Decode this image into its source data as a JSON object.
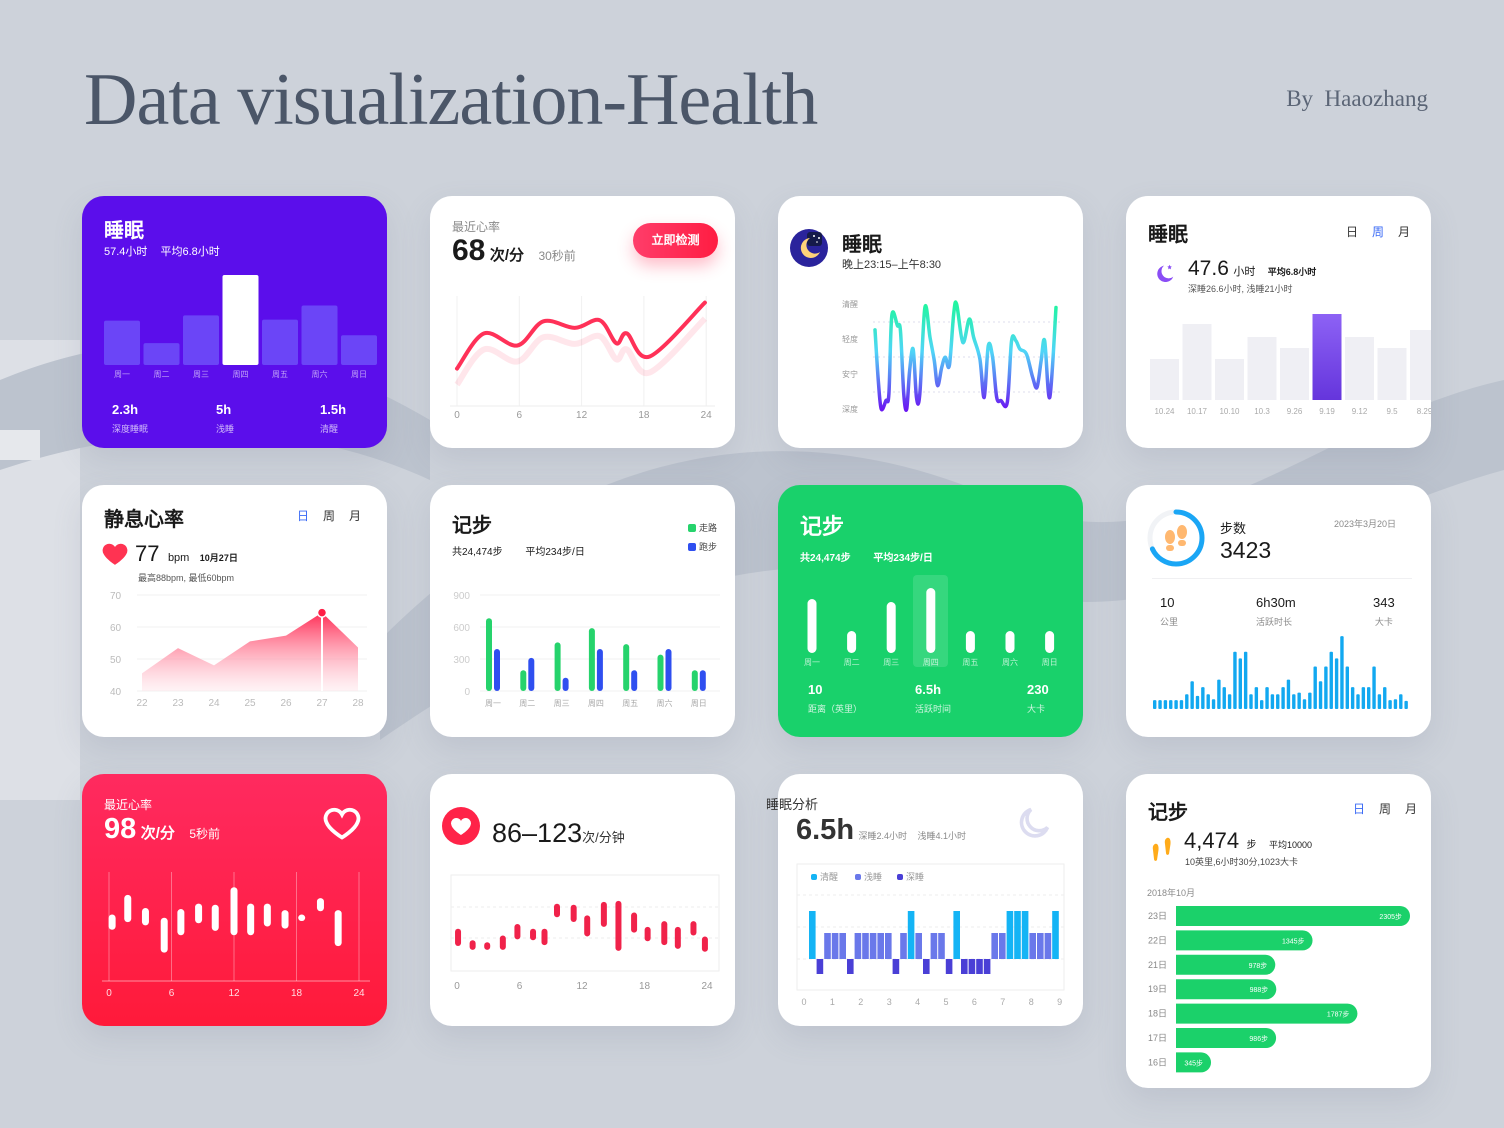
{
  "page": {
    "title": "Data visualization-Health",
    "author": "By  Haaozhang"
  },
  "colors": {
    "purple": "#5b0eeb",
    "red": "#ff2348",
    "green": "#19d16b",
    "blue": "#12a8f0",
    "tab_active": "#3a6af5",
    "walk": "#26d36c",
    "run": "#2f4ff0",
    "awake": "#14b4f5",
    "light": "#6a78ea",
    "deep": "#4a3fd6"
  },
  "cards": {
    "sleep_week": {
      "title": "睡眠",
      "total": "57.4小时",
      "average": "平均6.8小时",
      "stats": [
        {
          "value": "2.3h",
          "label": "深度睡眠"
        },
        {
          "value": "5h",
          "label": "浅睡"
        },
        {
          "value": "1.5h",
          "label": "清醒"
        }
      ]
    },
    "heart_rate_line": {
      "label": "最近心率",
      "value": "68",
      "unit": "次/分",
      "time": "30秒前",
      "button": "立即检测"
    },
    "sleep_stages": {
      "title": "睡眠",
      "time_range": "晚上23:15–上午8:30",
      "icon": "moon-night-icon"
    },
    "sleep_history": {
      "title": "睡眠",
      "tabs": [
        "日",
        "周",
        "月"
      ],
      "active_tab": 1,
      "total": "47.6",
      "unit": "小时",
      "average": "平均6.8小时",
      "detail": "深睡26.6小时, 浅睡21小时"
    },
    "resting_hr": {
      "title": "静息心率",
      "tabs": [
        "日",
        "周",
        "月"
      ],
      "active_tab": 0,
      "value": "77",
      "unit": "bpm",
      "date": "10月27日",
      "detail": "最高88bpm, 最低60bpm"
    },
    "steps_grouped": {
      "title": "记步",
      "total": "共24,474步",
      "average": "平均234步/日",
      "legend": [
        "走路",
        "跑步"
      ]
    },
    "steps_green": {
      "title": "记步",
      "total": "共24,474步",
      "average": "平均234步/日",
      "stats": [
        {
          "value": "10",
          "label": "距离（英里）"
        },
        {
          "value": "6.5h",
          "label": "活跃时间"
        },
        {
          "value": "230",
          "label": "大卡"
        }
      ]
    },
    "step_count": {
      "label": "步数",
      "value": "3423",
      "date": "2023年3月20日",
      "progress": 0.68,
      "stats": [
        {
          "value": "10",
          "label": "公里"
        },
        {
          "value": "6h30m",
          "label": "活跃时长"
        },
        {
          "value": "343",
          "label": "大卡"
        }
      ]
    },
    "recent_hr": {
      "label": "最近心率",
      "value": "98",
      "unit": "次/分",
      "time": "5秒前"
    },
    "hr_range": {
      "value": "86–123",
      "unit": "次/分钟"
    },
    "sleep_analysis": {
      "title": "睡眠分析",
      "value": "6.5h",
      "deep": "深睡2.4小时",
      "light": "浅睡4.1小时",
      "legend": [
        "清醒",
        "浅睡",
        "深睡"
      ]
    },
    "steps_daily": {
      "title": "记步",
      "tabs": [
        "日",
        "周",
        "月"
      ],
      "active_tab": 0,
      "value": "4,474",
      "unit": "步",
      "average": "平均10000",
      "detail": "10英里,6小时30分,1023大卡",
      "month": "2018年10月"
    }
  },
  "chart_data": [
    {
      "id": "sleep_week",
      "type": "bar",
      "categories": [
        "周一",
        "周二",
        "周三",
        "周四",
        "周五",
        "周六",
        "周日"
      ],
      "values": [
        134,
        66,
        150,
        272,
        137,
        180,
        90
      ],
      "highlight": 3
    },
    {
      "id": "heart_rate_line",
      "type": "line",
      "x_ticks": [
        "0",
        "6",
        "12",
        "18",
        "24"
      ],
      "xlim": [
        0,
        24
      ],
      "ylim": [
        0,
        100
      ],
      "points": [
        [
          0,
          34
        ],
        [
          2.6,
          66
        ],
        [
          5.8,
          55
        ],
        [
          8.3,
          77
        ],
        [
          11.3,
          71
        ],
        [
          13.7,
          78
        ],
        [
          15.3,
          57
        ],
        [
          16.3,
          66
        ],
        [
          18.5,
          45
        ],
        [
          23.8,
          94
        ]
      ]
    },
    {
      "id": "sleep_stages",
      "type": "line",
      "y_labels": [
        "深度",
        "安宁",
        "轻度",
        "清醒"
      ],
      "xlim": [
        23.25,
        32.5
      ],
      "points": [
        [
          23.25,
          2.26
        ],
        [
          23.42,
          0.8
        ],
        [
          23.57,
          0
        ],
        [
          23.81,
          0.24
        ],
        [
          23.96,
          0.43
        ],
        [
          24.11,
          2.67
        ],
        [
          24.4,
          2.38
        ],
        [
          24.55,
          2.24
        ],
        [
          24.72,
          0.43
        ],
        [
          24.87,
          0
        ],
        [
          25.02,
          1.1
        ],
        [
          25.2,
          1.71
        ],
        [
          25.37,
          0.33
        ],
        [
          25.54,
          0.43
        ],
        [
          25.8,
          2.9
        ],
        [
          26.06,
          2.05
        ],
        [
          26.28,
          1.38
        ],
        [
          26.45,
          0.67
        ],
        [
          26.66,
          1.19
        ],
        [
          26.84,
          1.48
        ],
        [
          27.05,
          1.24
        ],
        [
          27.27,
          2.71
        ],
        [
          27.42,
          3
        ],
        [
          27.74,
          1.9
        ],
        [
          28.07,
          2.57
        ],
        [
          28.29,
          2.05
        ],
        [
          28.61,
          1.43
        ],
        [
          28.83,
          0.33
        ],
        [
          29.04,
          1.81
        ],
        [
          29.26,
          1.48
        ],
        [
          29.47,
          0.33
        ],
        [
          29.69,
          0.24
        ],
        [
          30.01,
          0.19
        ],
        [
          30.23,
          1.95
        ],
        [
          30.45,
          1.95
        ],
        [
          30.66,
          1.71
        ],
        [
          30.99,
          1.57
        ],
        [
          31.31,
          0.9
        ],
        [
          31.53,
          0.62
        ],
        [
          31.74,
          1.38
        ],
        [
          31.92,
          1.95
        ],
        [
          32.18,
          0.33
        ],
        [
          32.5,
          2.9
        ]
      ]
    },
    {
      "id": "sleep_history",
      "type": "bar",
      "categories": [
        "10.24",
        "10.17",
        "10.10",
        "10.3",
        "9.26",
        "9.19",
        "9.12",
        "9.5",
        "8.29"
      ],
      "values": [
        41,
        76,
        41,
        63,
        52,
        86,
        63,
        52,
        70
      ],
      "highlight": 5
    },
    {
      "id": "resting_hr",
      "type": "area",
      "x": [
        22,
        23,
        24,
        25,
        26,
        27,
        28
      ],
      "values": [
        45.5,
        53.4,
        48,
        55.5,
        57.3,
        64.5,
        53.6
      ],
      "ylim": [
        40,
        70
      ],
      "y_ticks": [
        70,
        60,
        50,
        40
      ],
      "highlight": 27
    },
    {
      "id": "steps_grouped",
      "type": "bar",
      "categories": [
        "周一",
        "周二",
        "周三",
        "周四",
        "周五",
        "周六",
        "周日"
      ],
      "ylim": [
        0,
        900
      ],
      "y_ticks": [
        900,
        600,
        300,
        0
      ],
      "legend": "top-right",
      "series": [
        {
          "name": "走路",
          "values": [
            682,
            195,
            456,
            589,
            440,
            341,
            195
          ]
        },
        {
          "name": "跑步",
          "values": [
            394,
            310,
            124,
            394,
            195,
            394,
            195
          ]
        }
      ]
    },
    {
      "id": "steps_green",
      "type": "bar",
      "categories": [
        "周一",
        "周二",
        "周三",
        "周四",
        "周五",
        "周六",
        "周日"
      ],
      "values": [
        54,
        22,
        51,
        65,
        22,
        22,
        22
      ],
      "highlight": 3
    },
    {
      "id": "step_count",
      "type": "bar",
      "values": [
        27,
        27,
        27,
        27,
        27,
        27,
        45,
        85,
        40,
        67,
        45,
        30,
        90,
        67,
        45,
        175,
        155,
        175,
        45,
        67,
        27,
        67,
        45,
        45,
        67,
        90,
        45,
        50,
        30,
        50,
        130,
        85,
        130,
        175,
        155,
        223,
        130,
        67,
        45,
        67,
        67,
        130,
        45,
        67,
        27,
        30,
        45,
        25
      ]
    },
    {
      "id": "recent_hr",
      "type": "range-bar",
      "x_ticks": [
        "0",
        "6",
        "12",
        "18",
        "24"
      ],
      "xlim": [
        0,
        24
      ],
      "ylim": [
        0,
        100
      ],
      "x": [
        0.3,
        1.8,
        3.5,
        5.3,
        6.9,
        8.6,
        10.2,
        12,
        13.6,
        15.2,
        16.9,
        18.5,
        20.3,
        22
      ],
      "ranges": [
        [
          47,
          61
        ],
        [
          54,
          79
        ],
        [
          51,
          67
        ],
        [
          26,
          58
        ],
        [
          42,
          66
        ],
        [
          53,
          71
        ],
        [
          46,
          70
        ],
        [
          42,
          86
        ],
        [
          42,
          71
        ],
        [
          50,
          71
        ],
        [
          48,
          65
        ],
        [
          55,
          61
        ],
        [
          64,
          76
        ],
        [
          32,
          65
        ]
      ]
    },
    {
      "id": "hr_range",
      "type": "range-bar",
      "x_ticks": [
        "0",
        "6",
        "12",
        "18",
        "24"
      ],
      "xlim": [
        0,
        24
      ],
      "ylim": [
        0,
        100
      ],
      "x": [
        0.1,
        1.5,
        2.9,
        4.4,
        5.8,
        7.3,
        8.4,
        9.6,
        11.2,
        12.5,
        14.1,
        15.5,
        17,
        18.3,
        19.9,
        21.2,
        22.7,
        23.8
      ],
      "ranges": [
        [
          26,
          44
        ],
        [
          22,
          32
        ],
        [
          22,
          30
        ],
        [
          22,
          37
        ],
        [
          33,
          49
        ],
        [
          32,
          44
        ],
        [
          27,
          44
        ],
        [
          56,
          70
        ],
        [
          51,
          69
        ],
        [
          36,
          58
        ],
        [
          46,
          72
        ],
        [
          21,
          73
        ],
        [
          40,
          61
        ],
        [
          31,
          46
        ],
        [
          27,
          52
        ],
        [
          23,
          46
        ],
        [
          37,
          52
        ],
        [
          20,
          36
        ]
      ]
    },
    {
      "id": "sleep_analysis",
      "type": "bar",
      "x_ticks": [
        "0",
        "1",
        "2",
        "3",
        "4",
        "5",
        "6",
        "7",
        "8",
        "9"
      ],
      "xlim": [
        0,
        9
      ],
      "legend": "top-left",
      "stages": [
        "清醒",
        "深睡",
        "浅睡",
        "浅睡",
        "浅睡",
        "深睡",
        "浅睡",
        "浅睡",
        "浅睡",
        "浅睡",
        "浅睡",
        "深睡",
        "浅睡",
        "清醒",
        "浅睡",
        "深睡",
        "浅睡",
        "浅睡",
        "深睡",
        "清醒",
        "深睡",
        "深睡",
        "深睡",
        "深睡",
        "浅睡",
        "浅睡",
        "清醒",
        "清醒",
        "清醒",
        "浅睡",
        "浅睡",
        "浅睡",
        "清醒"
      ]
    },
    {
      "id": "steps_daily",
      "type": "bar",
      "orientation": "horizontal",
      "categories": [
        "23日",
        "22日",
        "21日",
        "19日",
        "18日",
        "17日",
        "16日"
      ],
      "values": [
        2305,
        1345,
        978,
        988,
        1787,
        986,
        345
      ],
      "labels": [
        "2305步",
        "1345步",
        "978步",
        "988步",
        "1787步",
        "986步",
        "345步"
      ]
    }
  ]
}
